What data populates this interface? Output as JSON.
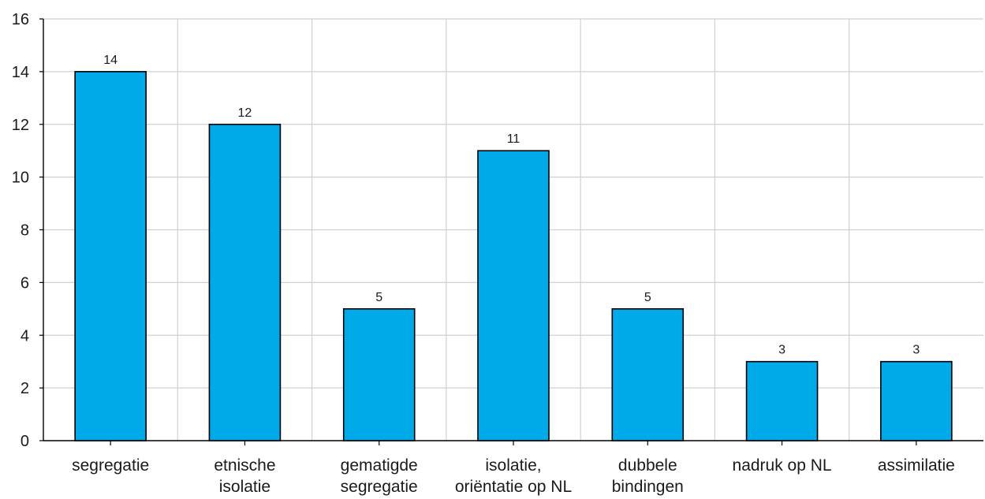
{
  "chart_data": {
    "type": "bar",
    "categories": [
      [
        "segregatie"
      ],
      [
        "etnische",
        "isolatie"
      ],
      [
        "gematigde",
        "segregatie"
      ],
      [
        "isolatie,",
        "oriëntatie op NL"
      ],
      [
        "dubbele",
        "bindingen"
      ],
      [
        "nadruk op NL"
      ],
      [
        "assimilatie"
      ]
    ],
    "values": [
      14,
      12,
      5,
      11,
      5,
      3,
      3
    ],
    "ylim": [
      0,
      16
    ],
    "yticks": [
      0,
      2,
      4,
      6,
      8,
      10,
      12,
      14,
      16
    ],
    "grid": true,
    "bar_color": "#00a9e8",
    "bar_edge_color": "#000000",
    "grid_color": "#d0d0d0"
  }
}
